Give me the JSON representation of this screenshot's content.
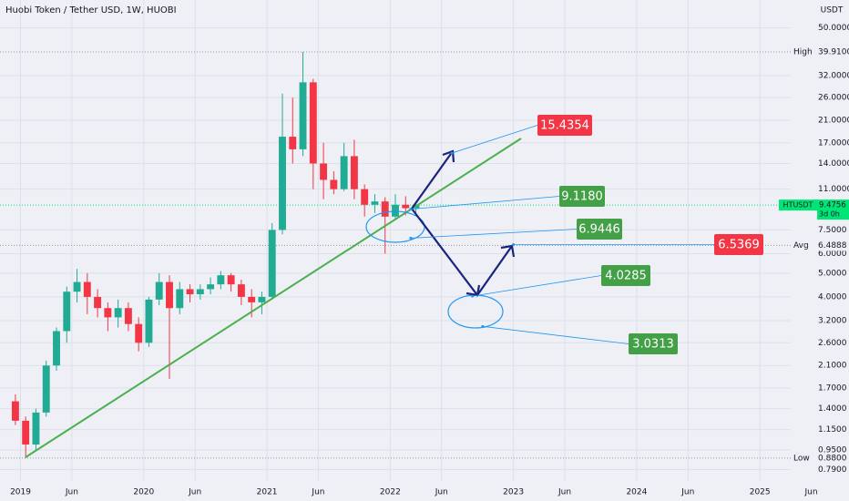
{
  "chart_data": {
    "type": "candlestick",
    "title": "Huobi Token / Tether USD, 1W, HUOBI",
    "currency": "USDT",
    "log_scale": true,
    "grid": true,
    "up_color": "#22ab94",
    "down_color": "#f23645",
    "x": [
      "2018-12",
      "2019-01",
      "2019-02",
      "2019-03",
      "2019-04",
      "2019-05",
      "2019-06",
      "2019-07",
      "2019-08",
      "2019-09",
      "2019-10",
      "2019-11",
      "2019-12",
      "2020-01",
      "2020-02",
      "2020-03",
      "2020-04",
      "2020-05",
      "2020-06",
      "2020-07",
      "2020-08",
      "2020-09",
      "2020-10",
      "2020-11",
      "2020-12",
      "2021-01",
      "2021-02",
      "2021-03",
      "2021-04",
      "2021-05",
      "2021-06",
      "2021-07",
      "2021-08",
      "2021-09",
      "2021-10",
      "2021-11",
      "2021-12",
      "2022-01",
      "2022-02",
      "2022-03"
    ],
    "open": [
      1.5,
      1.25,
      1.0,
      1.35,
      2.1,
      2.9,
      4.2,
      4.6,
      4.0,
      3.6,
      3.3,
      3.6,
      3.1,
      2.6,
      3.9,
      4.6,
      3.6,
      4.3,
      4.1,
      4.3,
      4.5,
      4.9,
      4.5,
      4.0,
      3.8,
      4.0,
      7.5,
      18,
      16,
      30,
      14,
      12,
      11,
      15,
      11,
      9.5,
      9.8,
      8.5,
      9.5,
      9.2
    ],
    "high": [
      1.6,
      1.3,
      1.4,
      2.2,
      3.0,
      4.4,
      5.2,
      5.0,
      4.3,
      3.8,
      3.9,
      3.8,
      3.3,
      4.0,
      5.0,
      4.9,
      4.6,
      4.5,
      4.5,
      4.8,
      5.1,
      5.0,
      4.7,
      4.3,
      4.2,
      8.0,
      27,
      26,
      39.91,
      31,
      17,
      13,
      17,
      17.5,
      11.5,
      10.5,
      10.2,
      10.5,
      10.3,
      9.8
    ],
    "low": [
      1.2,
      0.88,
      0.95,
      1.3,
      2.0,
      2.6,
      3.8,
      3.4,
      3.3,
      2.9,
      3.0,
      2.9,
      2.4,
      2.5,
      3.7,
      1.85,
      3.4,
      3.8,
      3.9,
      4.1,
      4.3,
      4.2,
      3.7,
      3.3,
      3.4,
      3.9,
      7.2,
      14,
      15,
      11,
      10,
      10.5,
      10.8,
      10,
      8.5,
      8.8,
      6.0,
      8.3,
      8.6,
      8.7
    ],
    "close": [
      1.25,
      1.0,
      1.35,
      2.1,
      2.9,
      4.2,
      4.6,
      4.0,
      3.6,
      3.3,
      3.6,
      3.1,
      2.6,
      3.9,
      4.6,
      3.6,
      4.3,
      4.1,
      4.3,
      4.5,
      4.9,
      4.5,
      4.0,
      3.8,
      4.0,
      7.5,
      18,
      16,
      30,
      14,
      12,
      11,
      15,
      11,
      9.5,
      9.8,
      8.5,
      9.5,
      9.2,
      9.4756
    ],
    "xlim": [
      "2018-11",
      "2025-04"
    ],
    "xticks": [
      {
        "value": "2019-01",
        "label": "2019"
      },
      {
        "value": "2019-06",
        "label": "Jun"
      },
      {
        "value": "2020-01",
        "label": "2020"
      },
      {
        "value": "2020-06",
        "label": "Jun"
      },
      {
        "value": "2021-01",
        "label": "2021"
      },
      {
        "value": "2021-06",
        "label": "Jun"
      },
      {
        "value": "2022-01",
        "label": "2022"
      },
      {
        "value": "2022-06",
        "label": "Jun"
      },
      {
        "value": "2023-01",
        "label": "2023"
      },
      {
        "value": "2023-06",
        "label": "Jun"
      },
      {
        "value": "2024-01",
        "label": "2024"
      },
      {
        "value": "2024-06",
        "label": "Jun"
      },
      {
        "value": "2025-01",
        "label": "2025"
      },
      {
        "value": "2025-06",
        "label": "Jun"
      }
    ],
    "ylim": [
      0.71,
      65
    ],
    "yticks": [
      {
        "value": 50,
        "label": "50.0000"
      },
      {
        "value": 32,
        "label": "32.0000"
      },
      {
        "value": 26,
        "label": "26.0000"
      },
      {
        "value": 21,
        "label": "21.0000"
      },
      {
        "value": 17,
        "label": "17.0000"
      },
      {
        "value": 14,
        "label": "14.0000"
      },
      {
        "value": 11,
        "label": "11.0000"
      },
      {
        "value": 7.5,
        "label": "7.5000"
      },
      {
        "value": 6,
        "label": "6.0000"
      },
      {
        "value": 5,
        "label": "5.0000"
      },
      {
        "value": 4,
        "label": "4.0000"
      },
      {
        "value": 3.2,
        "label": "3.2000"
      },
      {
        "value": 2.6,
        "label": "2.6000"
      },
      {
        "value": 2.1,
        "label": "2.1000"
      },
      {
        "value": 1.7,
        "label": "1.7000"
      },
      {
        "value": 1.4,
        "label": "1.4000"
      },
      {
        "value": 1.15,
        "label": "1.1500"
      },
      {
        "value": 0.95,
        "label": "0.9500"
      },
      {
        "value": 0.79,
        "label": "0.7900"
      }
    ],
    "levels": [
      {
        "name": "High",
        "value": 39.91,
        "label": "39.9100"
      },
      {
        "name": "Avg",
        "value": 6.4888,
        "label": "6.4888"
      },
      {
        "name": "Low",
        "value": 0.88,
        "label": "0.8800"
      }
    ],
    "last_price": {
      "symbol": "HTUSDT",
      "value": 9.4756,
      "label": "9.4756",
      "countdown": "3d 0h",
      "color": "#00e676"
    },
    "annotations": [
      {
        "label": "15.4354",
        "value": 15.4354,
        "x": "2022-07",
        "color": "#f23645"
      },
      {
        "label": "9.1180",
        "value": 9.118,
        "x": "2022-03",
        "color": "#43a047"
      },
      {
        "label": "6.9446",
        "value": 6.9446,
        "x": "2022-03",
        "color": "#43a047"
      },
      {
        "label": "6.5369",
        "value": 6.5369,
        "x": "2023-01",
        "color": "#f23645"
      },
      {
        "label": "4.0285",
        "value": 4.0285,
        "x": "2022-09",
        "color": "#43a047"
      },
      {
        "label": "3.0313",
        "value": 3.0313,
        "x": "2022-10",
        "color": "#43a047"
      }
    ]
  }
}
